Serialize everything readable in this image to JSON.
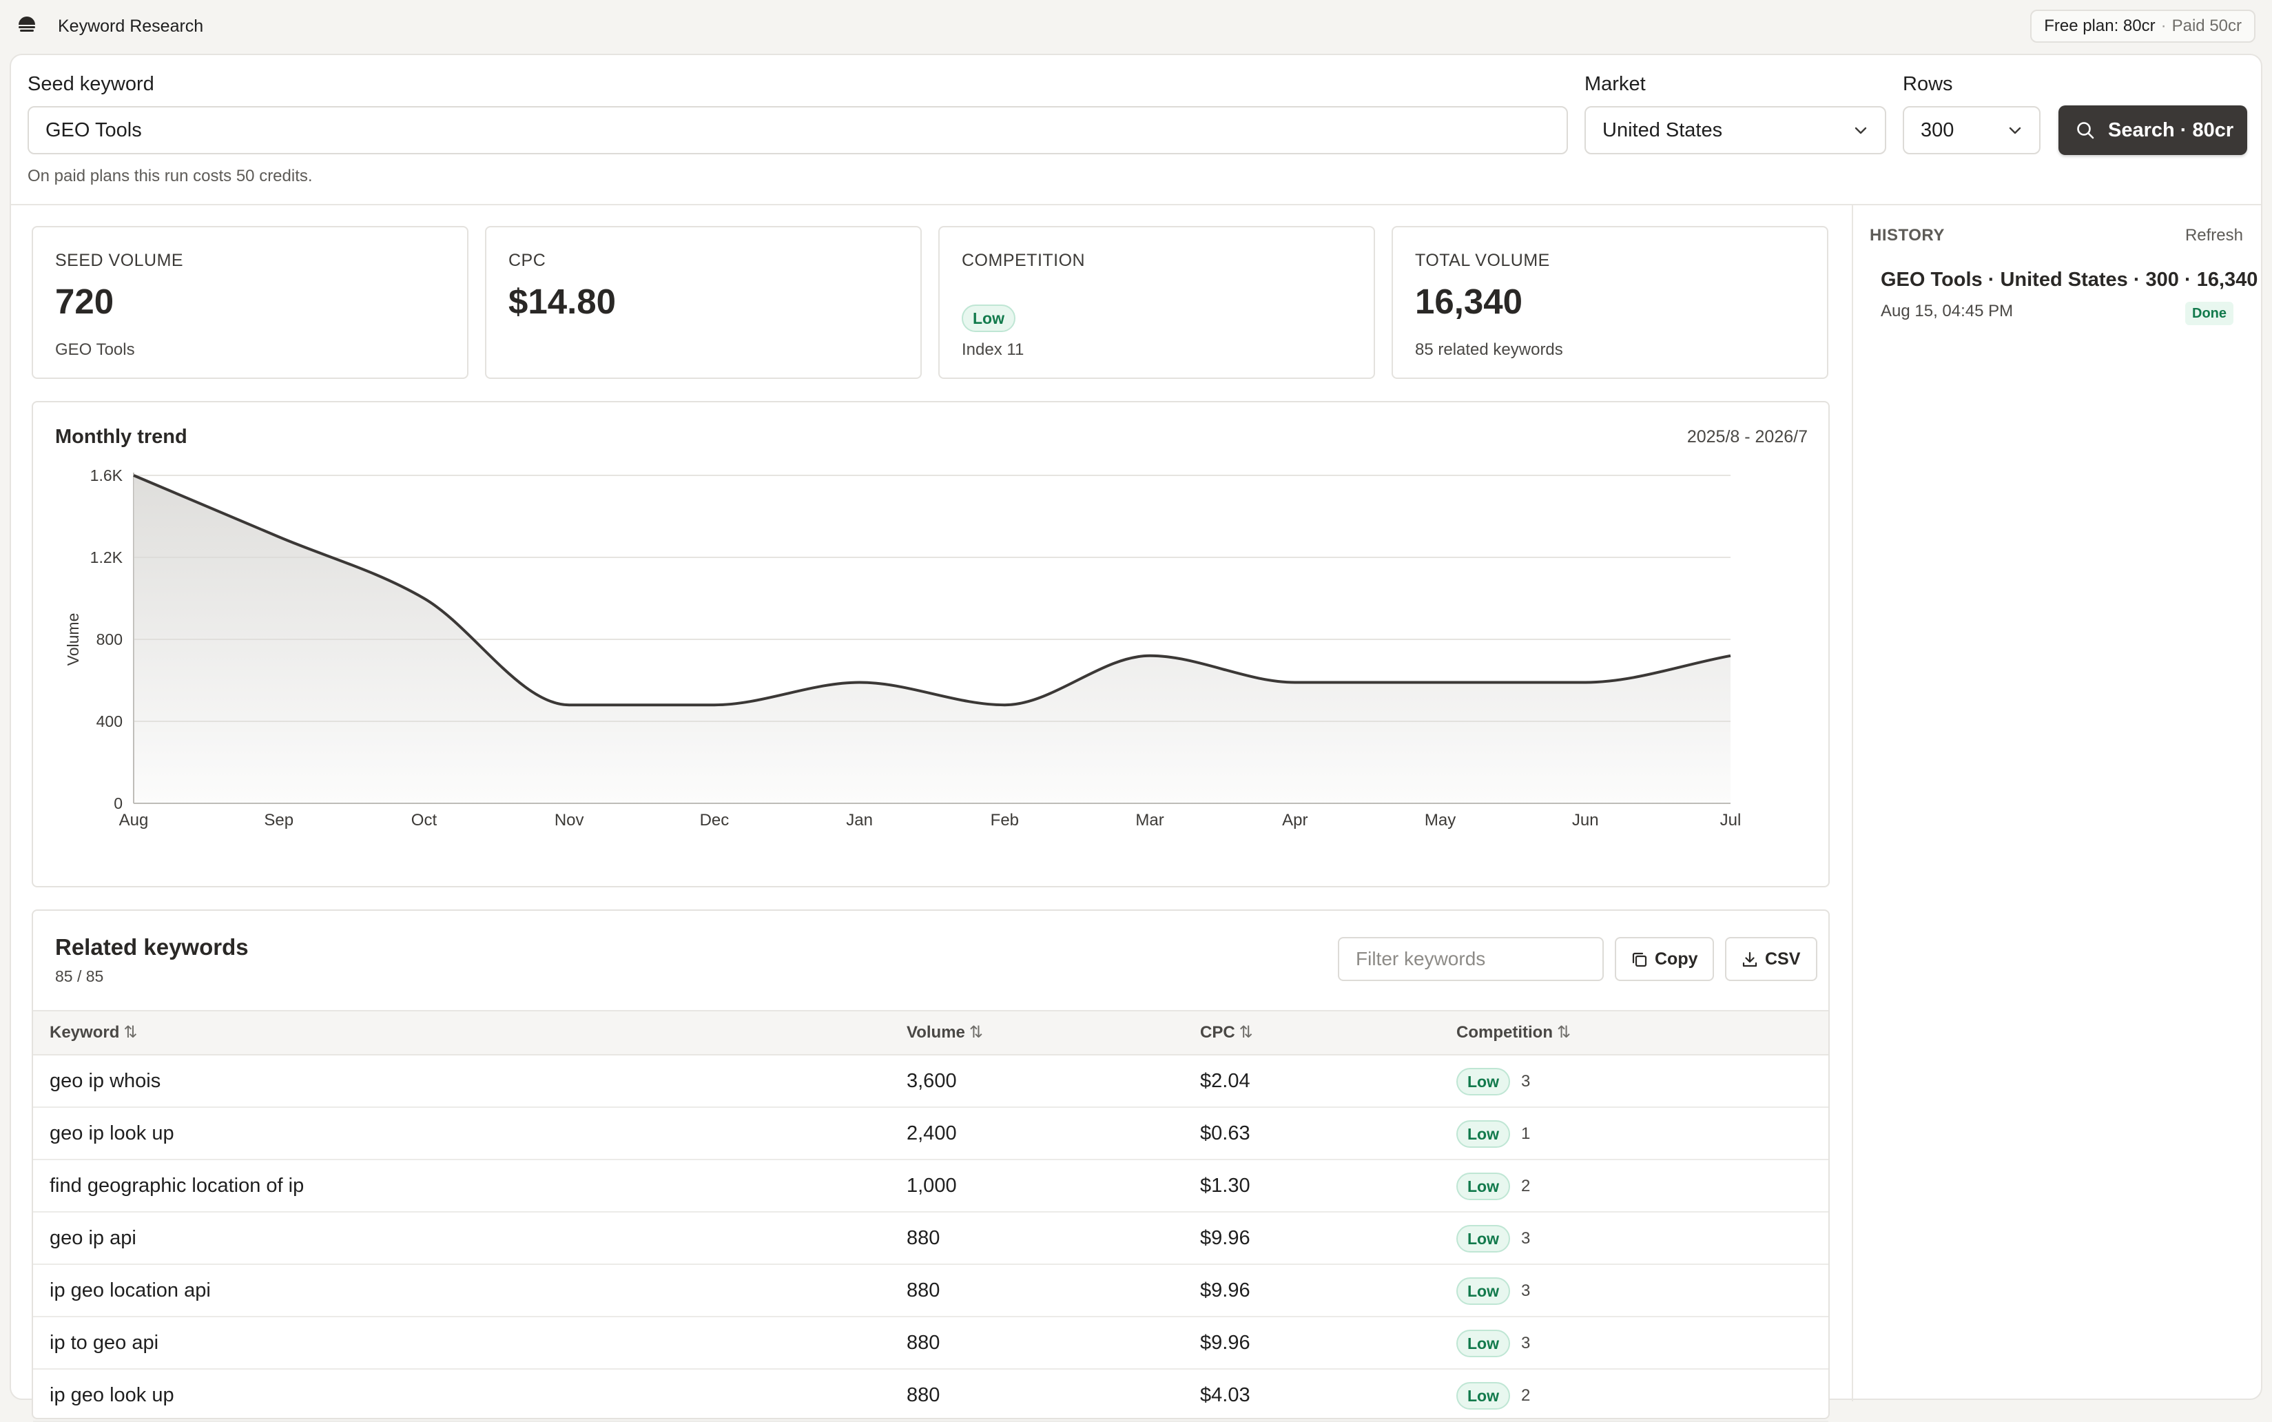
{
  "app": {
    "title": "Keyword Research",
    "plan_free": "Free plan: 80cr",
    "plan_sep": "·",
    "plan_paid": "Paid 50cr"
  },
  "form": {
    "seed_label": "Seed keyword",
    "seed_value": "GEO Tools",
    "market_label": "Market",
    "market_value": "United States",
    "rows_label": "Rows",
    "rows_value": "300",
    "search_label": "Search · 80cr",
    "hint": "On paid plans this run costs 50 credits."
  },
  "stats": [
    {
      "label": "SEED VOLUME",
      "value": "720",
      "sub": "GEO Tools"
    },
    {
      "label": "CPC",
      "value": "$14.80"
    },
    {
      "label": "COMPETITION",
      "badge": "Low",
      "sub": "Index 11"
    },
    {
      "label": "TOTAL VOLUME",
      "value": "16,340",
      "sub": "85 related keywords"
    }
  ],
  "chart_data": {
    "type": "area",
    "title": "Monthly trend",
    "range_label": "2025/8 - 2026/7",
    "ylabel": "Volume",
    "categories": [
      "Aug",
      "Sep",
      "Oct",
      "Nov",
      "Dec",
      "Jan",
      "Feb",
      "Mar",
      "Apr",
      "May",
      "Jun",
      "Jul"
    ],
    "values": [
      1600,
      1300,
      1000,
      480,
      480,
      590,
      480,
      720,
      590,
      590,
      590,
      720
    ],
    "ylim": [
      0,
      1600
    ],
    "yticks": [
      0,
      400,
      800,
      1200,
      1600
    ],
    "ytick_labels": [
      "0",
      "400",
      "800",
      "1.2K",
      "1.6K"
    ],
    "grid": true,
    "colors": {
      "line": "#3b3836",
      "fill": "#d9d8d5"
    }
  },
  "keywords": {
    "title": "Related keywords",
    "count": "85 / 85",
    "filter_placeholder": "Filter keywords",
    "copy_label": "Copy",
    "csv_label": "CSV",
    "columns": [
      "Keyword",
      "Volume",
      "CPC",
      "Competition"
    ],
    "sort_glyph": "⇅",
    "rows": [
      {
        "keyword": "geo ip whois",
        "volume": "3,600",
        "cpc": "$2.04",
        "comp": "Low",
        "index": "3"
      },
      {
        "keyword": "geo ip look up",
        "volume": "2,400",
        "cpc": "$0.63",
        "comp": "Low",
        "index": "1"
      },
      {
        "keyword": "find geographic location of ip",
        "volume": "1,000",
        "cpc": "$1.30",
        "comp": "Low",
        "index": "2"
      },
      {
        "keyword": "geo ip api",
        "volume": "880",
        "cpc": "$9.96",
        "comp": "Low",
        "index": "3"
      },
      {
        "keyword": "ip geo location api",
        "volume": "880",
        "cpc": "$9.96",
        "comp": "Low",
        "index": "3"
      },
      {
        "keyword": "ip to geo api",
        "volume": "880",
        "cpc": "$9.96",
        "comp": "Low",
        "index": "3"
      },
      {
        "keyword": "ip geo look up",
        "volume": "880",
        "cpc": "$4.03",
        "comp": "Low",
        "index": "2"
      }
    ]
  },
  "history": {
    "label": "HISTORY",
    "refresh_label": "Refresh",
    "items": [
      {
        "title": "GEO Tools · United States · 300 · 16,340",
        "time": "Aug 15, 04:45 PM",
        "status": "Done"
      }
    ]
  },
  "icons": {
    "logo": "logo-icon",
    "search": "search-icon",
    "chevron": "chevron-down-icon",
    "copy": "copy-icon",
    "download": "download-icon"
  }
}
